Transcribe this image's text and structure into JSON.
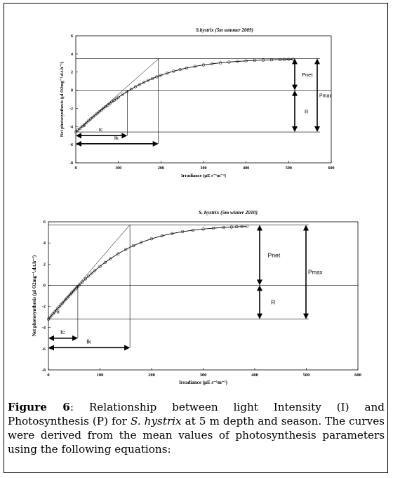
{
  "chart_data": [
    {
      "type": "line",
      "title": "S.hystrix (5m summer 2009)",
      "xlabel": "Irradiance (μE s⁻¹m⁻²)",
      "ylabel": "Net photosynthesis (μl O2mg⁻¹.d.t.h⁻¹)",
      "xlim": [
        0,
        600
      ],
      "ylim": [
        -8,
        6
      ],
      "xticks": [
        0,
        100,
        200,
        300,
        400,
        500,
        600
      ],
      "yticks": [
        6,
        4,
        2,
        0,
        -2,
        -4,
        -6,
        -8
      ],
      "model": {
        "Pmax": 8.1,
        "R": 4.6,
        "alpha": 0.0415
      },
      "Ic": 121,
      "Ik": 194,
      "observed_x": [
        0,
        5,
        10,
        15,
        20,
        25,
        30,
        35,
        40,
        45,
        50,
        55,
        60,
        65,
        70,
        75,
        80,
        85,
        90,
        95,
        100,
        110,
        120,
        130,
        140,
        150,
        160,
        170,
        180,
        190,
        200,
        215,
        230,
        245,
        260,
        280,
        300,
        320,
        340,
        360,
        380,
        400,
        420,
        440,
        460,
        480,
        490,
        500,
        510
      ],
      "annotations": [
        "α",
        "Ic",
        "Ik",
        "Pnet",
        "R",
        "Pmax"
      ]
    },
    {
      "type": "line",
      "title": "S. hystrix (5m winter 2010)",
      "xlabel": "Irradiance (μE s⁻¹m⁻²)",
      "ylabel": "Net photosynthesis (μl O2mg⁻¹.d.t.h⁻¹)",
      "xlim": [
        0,
        600
      ],
      "ylim": [
        -8,
        6
      ],
      "xticks": [
        0,
        100,
        200,
        300,
        400,
        500,
        600
      ],
      "yticks": [
        6,
        4,
        2,
        0,
        -2,
        -4,
        -6,
        -8
      ],
      "model": {
        "Pmax": 8.9,
        "R": 3.2,
        "alpha": 0.0564
      },
      "Ic": 57,
      "Ik": 158,
      "observed_x": [
        0,
        3,
        6,
        9,
        12,
        15,
        18,
        21,
        24,
        27,
        30,
        33,
        36,
        39,
        42,
        45,
        48,
        51,
        54,
        57,
        60,
        66,
        72,
        78,
        84,
        90,
        100,
        110,
        120,
        135,
        150,
        165,
        180,
        200,
        220,
        240,
        260,
        280,
        300,
        320,
        340,
        355,
        365,
        375,
        385
      ],
      "annotations": [
        "α",
        "Ic",
        "Ik",
        "Pnet",
        "R",
        "Pmax"
      ]
    }
  ],
  "caption": {
    "label": "Figure 6",
    "text_1": ": Relationship between light Intensity (I) and Photosynthesis (P) for ",
    "species": "S. hystrix",
    "text_2": " at 5 m depth and season. The curves were derived from the mean values of photosynthesis parameters using the following equations:"
  }
}
